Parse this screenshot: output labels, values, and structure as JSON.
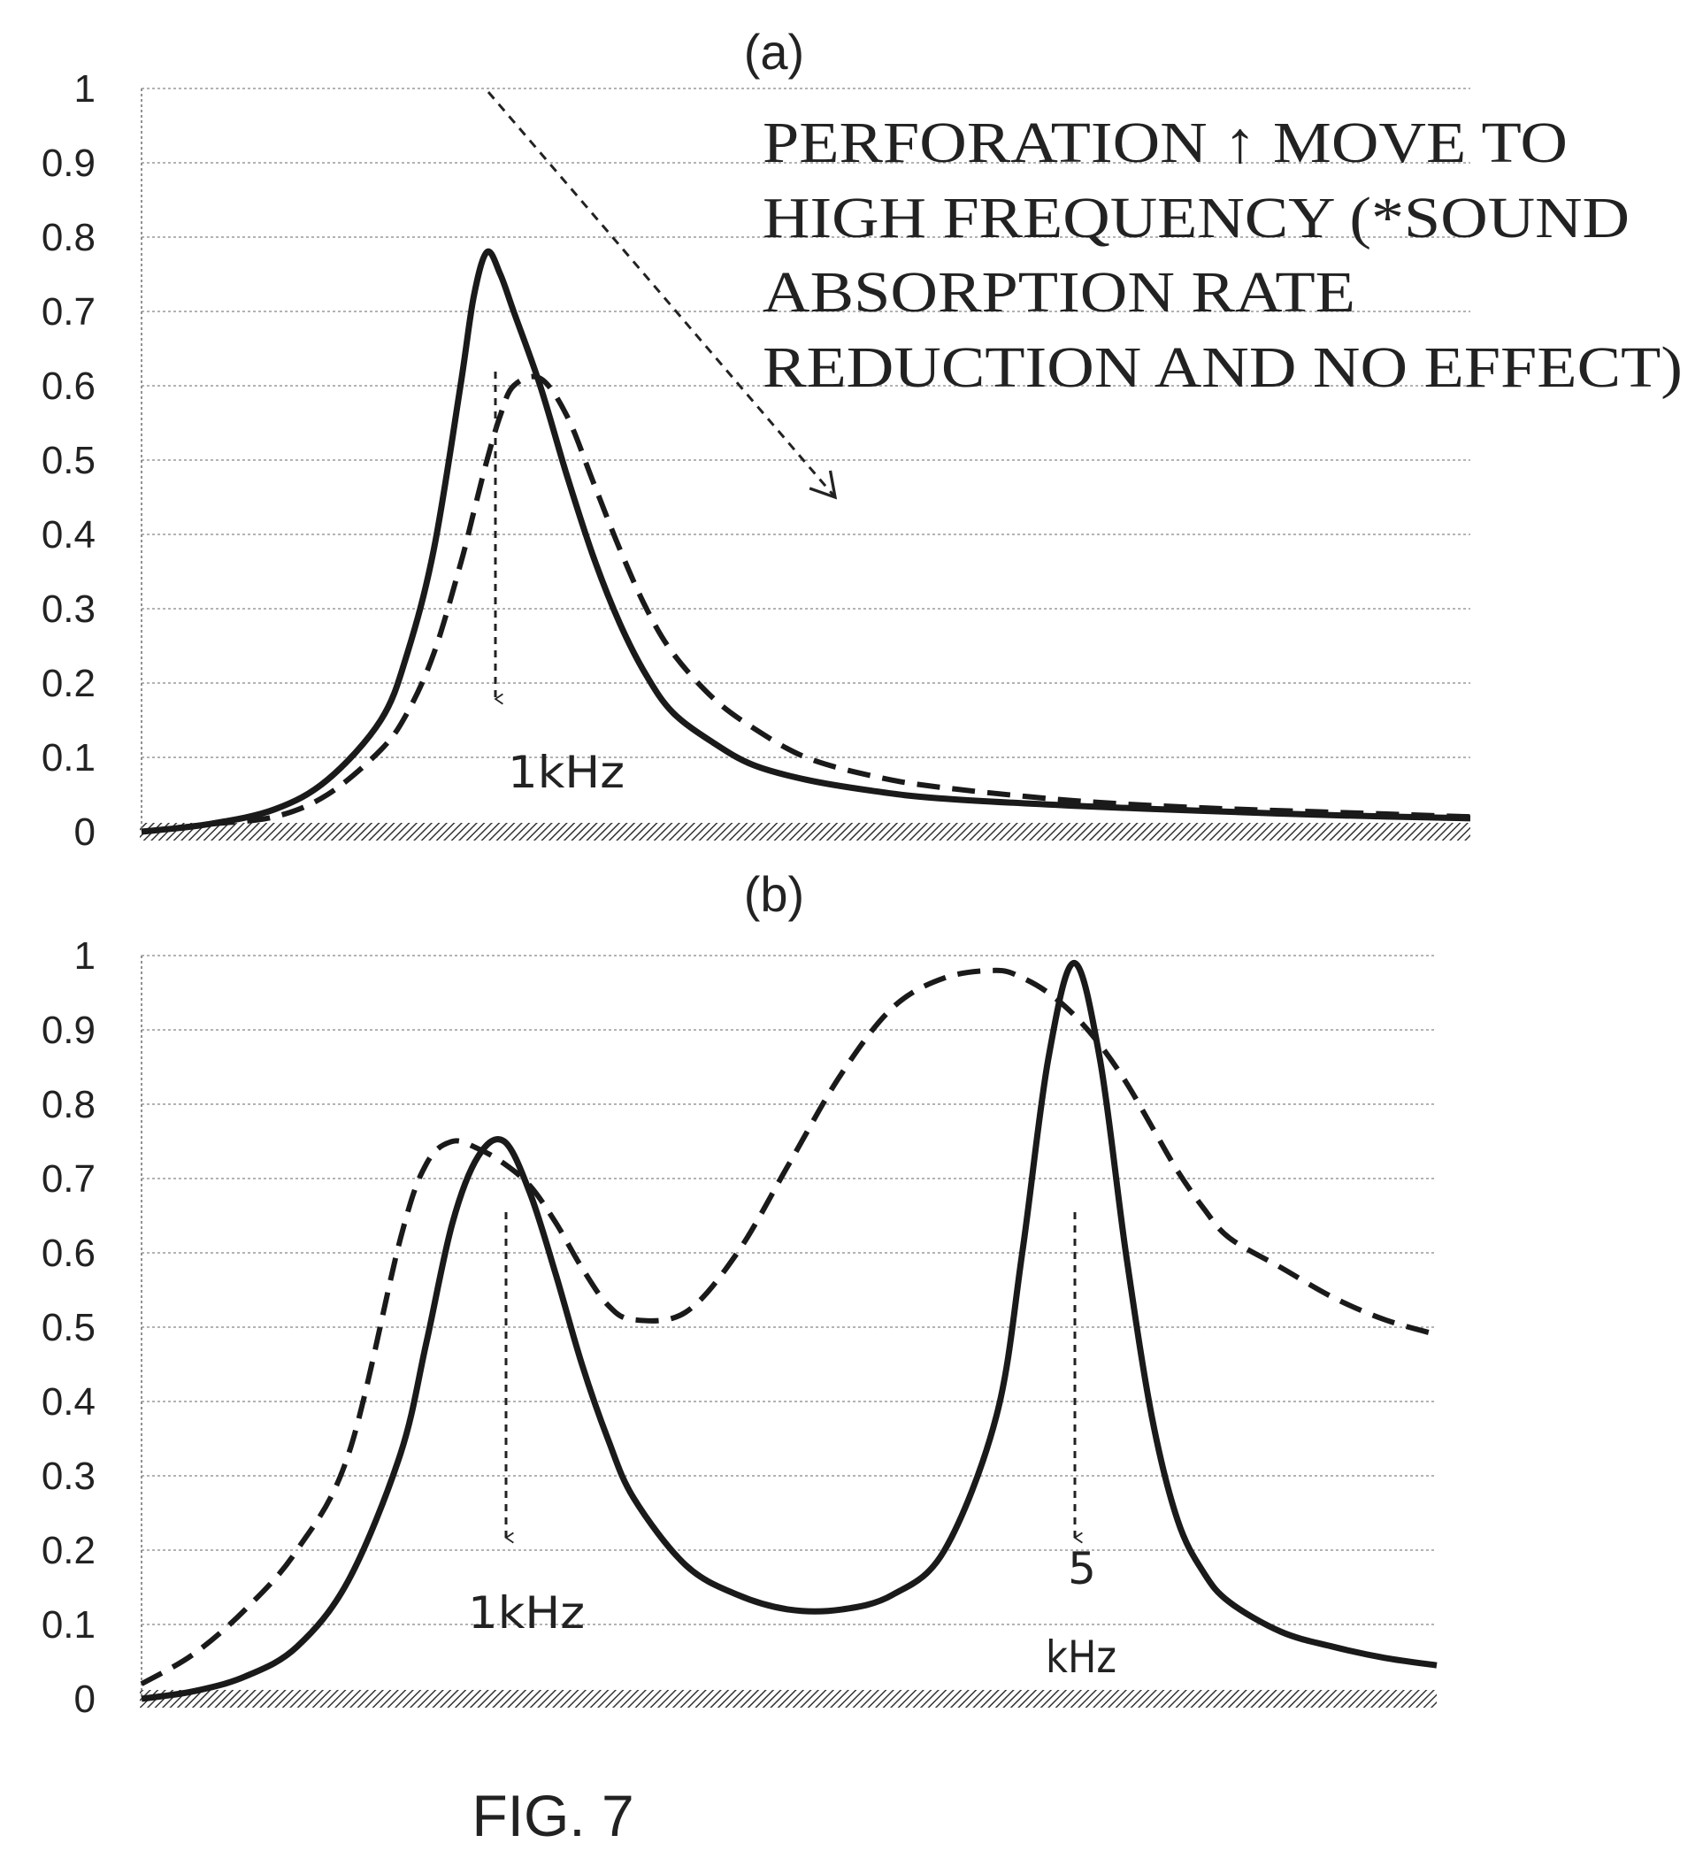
{
  "figure_label": "FIG. 7",
  "chart_data": [
    {
      "type": "line",
      "panel_label": "(a)",
      "ylim": [
        0,
        1
      ],
      "yticks": [
        "0",
        "0.1",
        "0.2",
        "0.3",
        "0.4",
        "0.5",
        "0.6",
        "0.7",
        "0.8",
        "0.9",
        "1"
      ],
      "grid": true,
      "x": [
        0,
        5,
        10,
        14,
        18,
        20,
        22,
        24,
        25,
        26,
        27,
        28,
        30,
        32,
        34,
        36,
        38,
        40,
        43,
        46,
        50,
        55,
        60,
        70,
        80,
        90,
        100
      ],
      "series": [
        {
          "style": "solid",
          "values": [
            0,
            0.01,
            0.03,
            0.07,
            0.15,
            0.24,
            0.38,
            0.6,
            0.72,
            0.78,
            0.75,
            0.7,
            0.6,
            0.48,
            0.37,
            0.28,
            0.21,
            0.16,
            0.12,
            0.09,
            0.07,
            0.055,
            0.045,
            0.035,
            0.028,
            0.022,
            0.018
          ]
        },
        {
          "style": "dashed",
          "values": [
            0,
            0.01,
            0.02,
            0.05,
            0.11,
            0.16,
            0.24,
            0.36,
            0.43,
            0.5,
            0.56,
            0.6,
            0.61,
            0.56,
            0.47,
            0.38,
            0.3,
            0.24,
            0.18,
            0.14,
            0.1,
            0.075,
            0.06,
            0.042,
            0.032,
            0.026,
            0.02
          ]
        }
      ],
      "annotations": [
        {
          "text_lines": [
            "PERFORATION ↑ MOVE TO",
            "HIGH FREQUENCY (*SOUND",
            "ABSORPTION RATE",
            "REDUCTION AND NO EFFECT)"
          ]
        },
        {
          "text": "1kHz",
          "x": 27
        }
      ]
    },
    {
      "type": "line",
      "panel_label": "(b)",
      "ylim": [
        0,
        1
      ],
      "yticks": [
        "0",
        "0.1",
        "0.2",
        "0.3",
        "0.4",
        "0.5",
        "0.6",
        "0.7",
        "0.8",
        "0.9",
        "1"
      ],
      "grid": true,
      "x": [
        0,
        4,
        8,
        12,
        16,
        20,
        22,
        24,
        26,
        28,
        30,
        32,
        34,
        36,
        38,
        42,
        46,
        50,
        54,
        58,
        62,
        66,
        68,
        70,
        72,
        74,
        76,
        78,
        80,
        82,
        84,
        88,
        92,
        96,
        100
      ],
      "series": [
        {
          "style": "solid",
          "values": [
            0,
            0.01,
            0.03,
            0.07,
            0.16,
            0.33,
            0.48,
            0.64,
            0.73,
            0.75,
            0.68,
            0.57,
            0.45,
            0.35,
            0.27,
            0.18,
            0.14,
            0.12,
            0.12,
            0.14,
            0.2,
            0.38,
            0.6,
            0.86,
            0.99,
            0.86,
            0.6,
            0.38,
            0.24,
            0.17,
            0.13,
            0.09,
            0.07,
            0.055,
            0.045
          ]
        },
        {
          "style": "dashed",
          "values": [
            0.02,
            0.06,
            0.12,
            0.2,
            0.33,
            0.62,
            0.72,
            0.75,
            0.74,
            0.72,
            0.69,
            0.64,
            0.58,
            0.53,
            0.51,
            0.52,
            0.6,
            0.72,
            0.84,
            0.93,
            0.97,
            0.98,
            0.97,
            0.95,
            0.92,
            0.88,
            0.83,
            0.77,
            0.71,
            0.66,
            0.62,
            0.58,
            0.54,
            0.51,
            0.49
          ]
        }
      ],
      "annotations": [
        {
          "text": "1kHz",
          "x": 28
        },
        {
          "text_lines": [
            "5",
            "kHz"
          ],
          "x": 72
        }
      ]
    }
  ]
}
